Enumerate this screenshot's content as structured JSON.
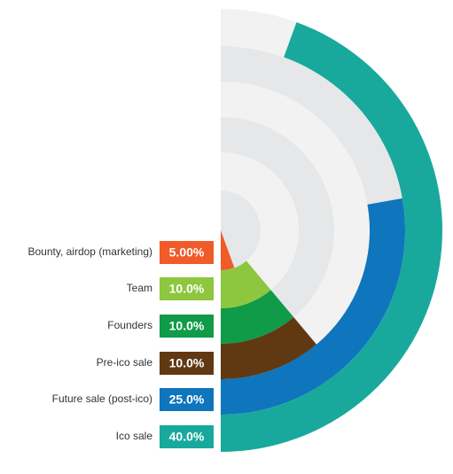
{
  "chart_data": {
    "type": "radial-bar",
    "categories": [
      "Bounty, airdop (marketing)",
      "Team",
      "Founders",
      "Pre-ico sale",
      "Future sale (post-ico)",
      "Ico sale"
    ],
    "values": [
      5,
      10,
      10,
      10,
      25,
      40
    ],
    "value_labels": [
      "5.00%",
      "10.0%",
      "10.0%",
      "10.0%",
      "25.0%",
      "40.0%"
    ],
    "colors": [
      "#f15a29",
      "#8dc63f",
      "#0f9b48",
      "#603913",
      "#0f75bc",
      "#18a99c"
    ]
  }
}
